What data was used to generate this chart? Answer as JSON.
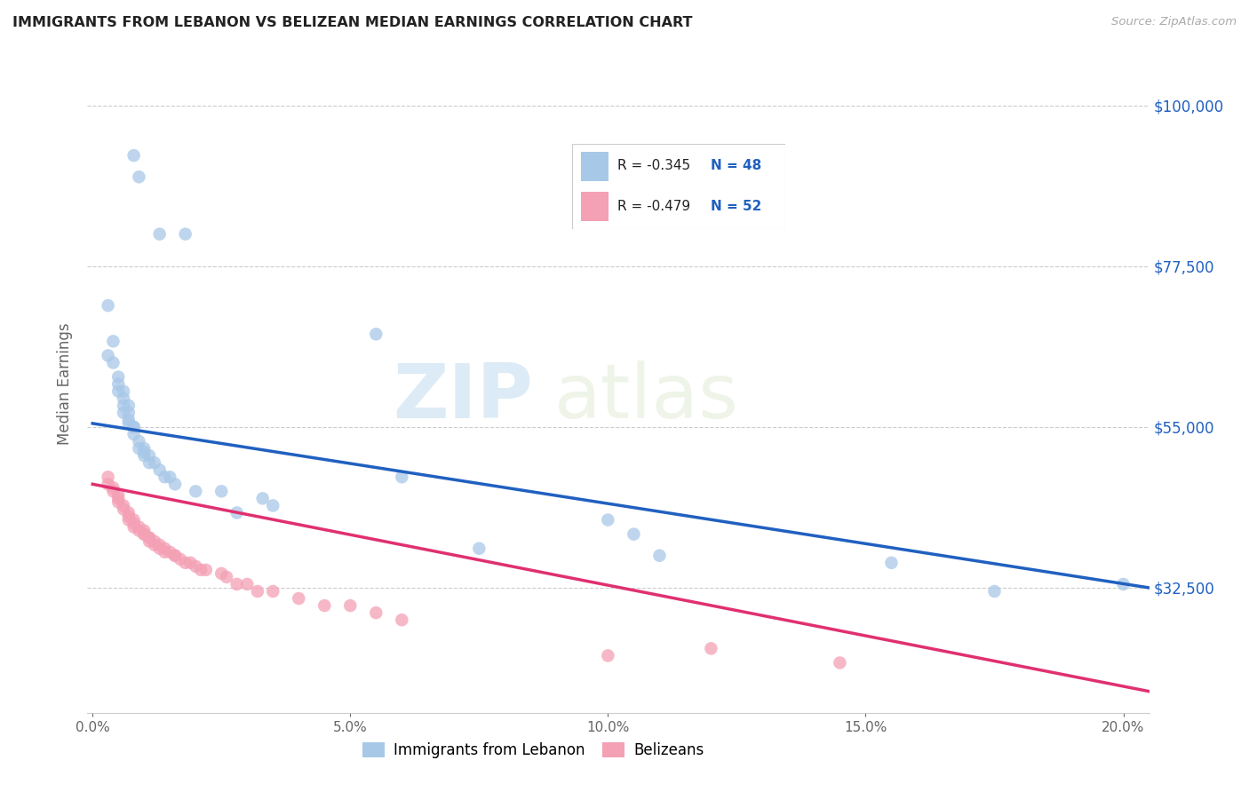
{
  "title": "IMMIGRANTS FROM LEBANON VS BELIZEAN MEDIAN EARNINGS CORRELATION CHART",
  "source": "Source: ZipAtlas.com",
  "ylabel": "Median Earnings",
  "xlabel_ticks": [
    "0.0%",
    "5.0%",
    "10.0%",
    "15.0%",
    "20.0%"
  ],
  "xlabel_vals": [
    0.0,
    0.05,
    0.1,
    0.15,
    0.2
  ],
  "ylabel_ticks": [
    "$32,500",
    "$55,000",
    "$77,500",
    "$100,000"
  ],
  "ylabel_vals": [
    32500,
    55000,
    77500,
    100000
  ],
  "ymin": 15000,
  "ymax": 107000,
  "xmin": -0.001,
  "xmax": 0.205,
  "legend_blue_label": "Immigrants from Lebanon",
  "legend_pink_label": "Belizeans",
  "legend_r_blue": "-0.345",
  "legend_n_blue": "48",
  "legend_r_pink": "-0.479",
  "legend_n_pink": "52",
  "blue_color": "#a8c8e8",
  "pink_color": "#f4a0b5",
  "line_blue": "#2060c0",
  "line_pink": "#e03070",
  "watermark_zip": "ZIP",
  "watermark_atlas": "atlas",
  "blue_x": [
    0.008,
    0.009,
    0.013,
    0.018,
    0.003,
    0.004,
    0.004,
    0.005,
    0.005,
    0.006,
    0.006,
    0.006,
    0.007,
    0.007,
    0.007,
    0.008,
    0.008,
    0.009,
    0.009,
    0.01,
    0.01,
    0.011,
    0.011,
    0.012,
    0.013,
    0.014,
    0.015,
    0.016,
    0.02,
    0.025,
    0.028,
    0.033,
    0.035,
    0.055,
    0.06,
    0.075,
    0.1,
    0.105,
    0.11,
    0.155,
    0.175,
    0.2,
    0.003,
    0.005,
    0.006,
    0.007,
    0.008,
    0.01
  ],
  "blue_y": [
    93000,
    90000,
    82000,
    82000,
    72000,
    67000,
    64000,
    62000,
    60000,
    59000,
    58000,
    57000,
    57000,
    56000,
    55500,
    55000,
    54000,
    53000,
    52000,
    52000,
    51000,
    51000,
    50000,
    50000,
    49000,
    48000,
    48000,
    47000,
    46000,
    46000,
    43000,
    45000,
    44000,
    68000,
    48000,
    38000,
    42000,
    40000,
    37000,
    36000,
    32000,
    33000,
    65000,
    61000,
    60000,
    58000,
    55000,
    51500
  ],
  "pink_x": [
    0.003,
    0.003,
    0.004,
    0.004,
    0.005,
    0.005,
    0.005,
    0.006,
    0.006,
    0.007,
    0.007,
    0.007,
    0.008,
    0.008,
    0.008,
    0.009,
    0.009,
    0.01,
    0.01,
    0.01,
    0.011,
    0.011,
    0.011,
    0.012,
    0.012,
    0.013,
    0.013,
    0.014,
    0.014,
    0.015,
    0.016,
    0.016,
    0.017,
    0.018,
    0.019,
    0.02,
    0.021,
    0.022,
    0.025,
    0.026,
    0.028,
    0.03,
    0.032,
    0.035,
    0.04,
    0.045,
    0.05,
    0.055,
    0.06,
    0.1,
    0.12,
    0.145
  ],
  "pink_y": [
    48000,
    47000,
    46500,
    46000,
    45500,
    45000,
    44500,
    44000,
    43500,
    43000,
    42500,
    42000,
    42000,
    41500,
    41000,
    41000,
    40500,
    40500,
    40000,
    40000,
    39500,
    39500,
    39000,
    39000,
    38500,
    38500,
    38000,
    38000,
    37500,
    37500,
    37000,
    37000,
    36500,
    36000,
    36000,
    35500,
    35000,
    35000,
    34500,
    34000,
    33000,
    33000,
    32000,
    32000,
    31000,
    30000,
    30000,
    29000,
    28000,
    23000,
    24000,
    22000
  ],
  "blue_line_x": [
    0.0,
    0.205
  ],
  "blue_line_y": [
    55500,
    32500
  ],
  "pink_line_x": [
    0.0,
    0.205
  ],
  "pink_line_y": [
    47000,
    18000
  ]
}
